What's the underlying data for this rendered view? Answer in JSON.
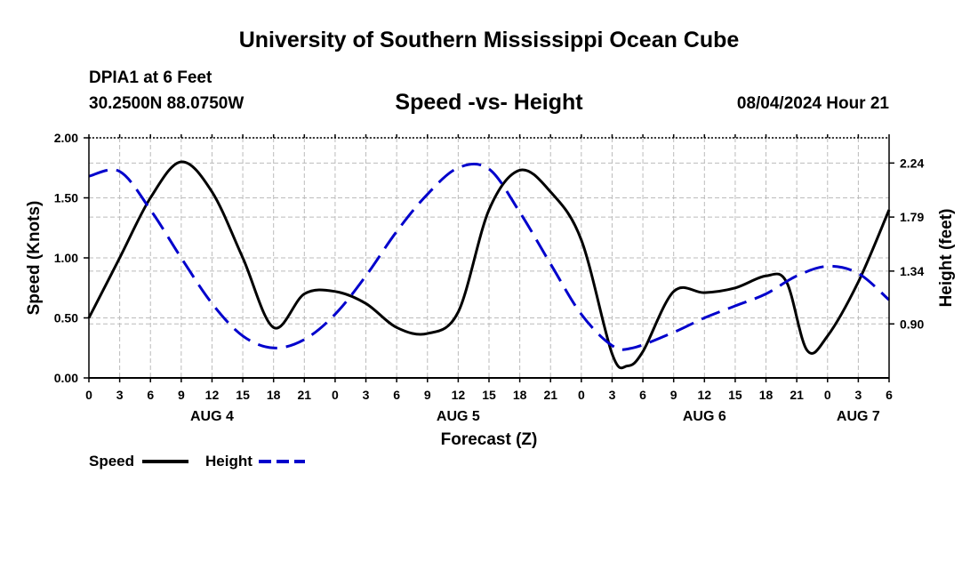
{
  "header": {
    "title": "University of Southern Mississippi Ocean Cube",
    "station": "DPIA1 at 6 Feet",
    "coords": "30.2500N  88.0750W",
    "subtitle": "Speed -vs- Height",
    "datetime": "08/04/2024 Hour 21"
  },
  "footer": {
    "title": "University of Southern Mississippi Ocean Cube"
  },
  "legend": {
    "items": [
      {
        "label": "Speed",
        "color": "#000000",
        "style": "solid"
      },
      {
        "label": "Height",
        "color": "#0000cc",
        "style": "dashed"
      }
    ]
  },
  "chart_data": {
    "type": "line",
    "title": "Speed -vs- Height",
    "xlabel": "Forecast (Z)",
    "ylabel": "Speed (Knots)",
    "y2label": "Height (feet)",
    "x_range": [
      0,
      78
    ],
    "x_tick_labels": [
      "0",
      "3",
      "6",
      "9",
      "12",
      "15",
      "18",
      "21",
      "0",
      "3",
      "6",
      "9",
      "12",
      "15",
      "18",
      "21",
      "0",
      "3",
      "6",
      "9",
      "12",
      "15",
      "18",
      "21",
      "0",
      "3",
      "6"
    ],
    "day_labels": [
      {
        "label": "AUG 4",
        "x": 12
      },
      {
        "label": "AUG 5",
        "x": 36
      },
      {
        "label": "AUG 6",
        "x": 60
      },
      {
        "label": "AUG 7",
        "x": 75
      }
    ],
    "ylim": [
      0,
      2
    ],
    "y_ticks": [
      "0.00",
      "0.50",
      "1.00",
      "1.50",
      "2.00"
    ],
    "y2lim": [
      0.45,
      2.45
    ],
    "y2_ticks": [
      "0.90",
      "1.34",
      "1.79",
      "2.24"
    ],
    "grid": true,
    "series": [
      {
        "name": "Speed",
        "axis": "left",
        "color": "#000000",
        "x": [
          0,
          3,
          6,
          9,
          12,
          15,
          18,
          21,
          24,
          27,
          30,
          33,
          36,
          39,
          42,
          45,
          48,
          51,
          52.5,
          54,
          57,
          60,
          63,
          66,
          68,
          70,
          72,
          75,
          78
        ],
        "values": [
          0.5,
          1.0,
          1.5,
          1.8,
          1.55,
          1.0,
          0.42,
          0.7,
          0.72,
          0.62,
          0.42,
          0.37,
          0.55,
          1.4,
          1.73,
          1.55,
          1.15,
          0.2,
          0.1,
          0.22,
          0.72,
          0.71,
          0.75,
          0.85,
          0.8,
          0.23,
          0.35,
          0.8,
          1.4
        ]
      },
      {
        "name": "Height",
        "axis": "right",
        "color": "#0000cc",
        "x": [
          0,
          3,
          6,
          9,
          12,
          15,
          18,
          21,
          24,
          27,
          30,
          33,
          36,
          39,
          42,
          45,
          48,
          51,
          53,
          57,
          60,
          63,
          66,
          69,
          72,
          75,
          78
        ],
        "values": [
          2.13,
          2.17,
          1.85,
          1.45,
          1.07,
          0.8,
          0.7,
          0.77,
          0.98,
          1.3,
          1.67,
          1.98,
          2.2,
          2.19,
          1.83,
          1.4,
          0.98,
          0.72,
          0.7,
          0.83,
          0.95,
          1.05,
          1.15,
          1.3,
          1.38,
          1.32,
          1.1
        ]
      }
    ]
  }
}
